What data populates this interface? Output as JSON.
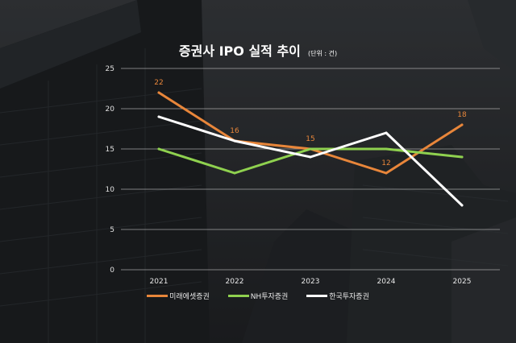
{
  "title": "증권사 IPO 실적 추이",
  "unit_note": "(단위 : 건)",
  "colors": {
    "background": "#2b2d30",
    "grid": "#d0d0d0",
    "text": "#ffffff"
  },
  "chart_data": {
    "type": "line",
    "title": "증권사 IPO 실적 추이",
    "unit": "(단위 : 건)",
    "categories": [
      "2021",
      "2022",
      "2023",
      "2024",
      "2025"
    ],
    "ylim": [
      0,
      25
    ],
    "yticks": [
      "0",
      "5",
      "10",
      "15",
      "20",
      "25"
    ],
    "grid": true,
    "legend_position": "bottom",
    "series": [
      {
        "name": "미래에셋증권",
        "color": "#e8863a",
        "values": [
          22,
          16,
          15,
          12,
          18
        ],
        "data_labels": [
          "22",
          "16",
          "15",
          "12",
          "18"
        ]
      },
      {
        "name": "NH투자증권",
        "color": "#8fd14f",
        "values": [
          15,
          12,
          15,
          15,
          14
        ]
      },
      {
        "name": "한국투자증권",
        "color": "#ffffff",
        "values": [
          19,
          16,
          14,
          17,
          8
        ]
      }
    ]
  }
}
